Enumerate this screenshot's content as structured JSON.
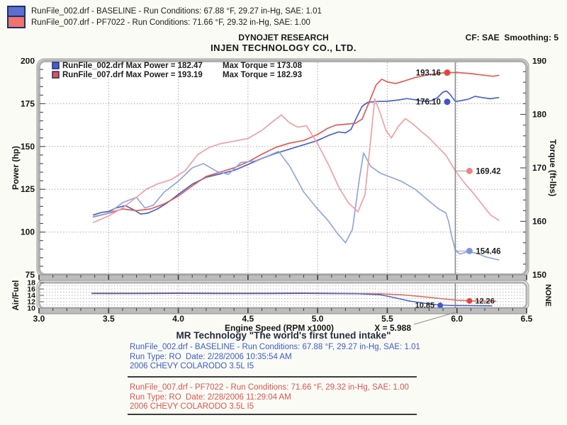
{
  "top_legend": {
    "line1": "RunFile_002.drf - BASELINE  -  Run Conditions: 67.88 °F, 29.27 in-Hg, SAE: 1.01",
    "line2": "RunFile_007.drf - PF7022  -  Run Conditions: 71.66 °F, 29.32 in-Hg, SAE: 1.00"
  },
  "header": {
    "title": "DYNOJET RESEARCH",
    "subtitle": "INJEN TECHNOLOGY CO., LTD.",
    "cf_smoothing": "CF: SAE  Smoothing: 5"
  },
  "colors": {
    "blue_power": "#4a63c8",
    "red_power": "#e05c55",
    "blue_torque": "#93a6dc",
    "pink_torque": "#f0a0a4",
    "blue_dot": "#4156c8",
    "red_dot": "#e8433c",
    "pink_dot": "#ed8287",
    "lightblue_dot": "#7b96e0",
    "grid": "#a8a8a8",
    "cursor": "#7d7d7d",
    "label_text": "#1d1d1d"
  },
  "chart_data": {
    "type": "line",
    "main": {
      "x_axis": {
        "label": "Engine Speed (RPM x1000)",
        "min": 3.0,
        "max": 6.5,
        "tick_labels": [
          "3.0",
          "3.5",
          "4.0",
          "4.5",
          "5.0",
          "5.5",
          "6.0",
          "6.5"
        ]
      },
      "y_left": {
        "label": "Power (hp)",
        "min": 75,
        "max": 200,
        "ticks": [
          200,
          175,
          150,
          125,
          100,
          75
        ]
      },
      "y_right": {
        "label": "Torque (ft-lbs)",
        "min": 150,
        "max": 190,
        "ticks": [
          190,
          180,
          170,
          160,
          150
        ]
      },
      "cursor_x": 5.988,
      "legend_rows": [
        {
          "swatch": "#4a5fc8",
          "power_text": "RunFile_002.drf Max Power = 182.47",
          "torque_text": "Max Torque = 173.08"
        },
        {
          "swatch": "#e2524c",
          "power_text": "RunFile_007.drf Max Power = 193.19",
          "torque_text": "Max Torque = 182.93"
        }
      ],
      "series": [
        {
          "name": "baseline-power-hp",
          "axis": "left",
          "color": "#4a63c8",
          "points": [
            [
              3.39,
              110
            ],
            [
              3.45,
              111.5
            ],
            [
              3.5,
              112
            ],
            [
              3.55,
              114
            ],
            [
              3.62,
              115.5
            ],
            [
              3.68,
              113
            ],
            [
              3.73,
              110.5
            ],
            [
              3.78,
              111
            ],
            [
              3.85,
              113.5
            ],
            [
              3.92,
              117
            ],
            [
              4.0,
              122
            ],
            [
              4.1,
              128
            ],
            [
              4.2,
              132
            ],
            [
              4.3,
              134
            ],
            [
              4.4,
              136
            ],
            [
              4.5,
              139.5
            ],
            [
              4.6,
              143
            ],
            [
              4.7,
              146
            ],
            [
              4.8,
              148.5
            ],
            [
              4.9,
              151
            ],
            [
              5.0,
              153.5
            ],
            [
              5.08,
              156.5
            ],
            [
              5.15,
              158.5
            ],
            [
              5.2,
              158
            ],
            [
              5.24,
              160
            ],
            [
              5.28,
              167
            ],
            [
              5.32,
              173.5
            ],
            [
              5.36,
              175.8
            ],
            [
              5.42,
              176.3
            ],
            [
              5.5,
              176.4
            ],
            [
              5.58,
              177.2
            ],
            [
              5.64,
              178
            ],
            [
              5.7,
              177.3
            ],
            [
              5.76,
              176.4
            ],
            [
              5.82,
              176.8
            ],
            [
              5.86,
              178.5
            ],
            [
              5.9,
              181.8
            ],
            [
              5.925,
              182.4
            ],
            [
              5.95,
              180.5
            ],
            [
              5.988,
              176.3
            ],
            [
              6.02,
              176.6
            ],
            [
              6.08,
              177.6
            ],
            [
              6.13,
              179.3
            ],
            [
              6.18,
              178.6
            ],
            [
              6.24,
              177.9
            ],
            [
              6.3,
              178.6
            ]
          ]
        },
        {
          "name": "pf7022-power-hp",
          "axis": "left",
          "color": "#e05c55",
          "points": [
            [
              3.39,
              109
            ],
            [
              3.5,
              111
            ],
            [
              3.6,
              113.5
            ],
            [
              3.7,
              112.5
            ],
            [
              3.8,
              113.5
            ],
            [
              3.9,
              116.5
            ],
            [
              4.0,
              121
            ],
            [
              4.1,
              127
            ],
            [
              4.2,
              132.5
            ],
            [
              4.3,
              135
            ],
            [
              4.4,
              137.5
            ],
            [
              4.5,
              141
            ],
            [
              4.6,
              145.5
            ],
            [
              4.7,
              149.5
            ],
            [
              4.8,
              152
            ],
            [
              4.9,
              153.5
            ],
            [
              5.0,
              157
            ],
            [
              5.07,
              160.5
            ],
            [
              5.13,
              162.5
            ],
            [
              5.2,
              163
            ],
            [
              5.27,
              163.5
            ],
            [
              5.32,
              166
            ],
            [
              5.37,
              176
            ],
            [
              5.42,
              186
            ],
            [
              5.46,
              189.3
            ],
            [
              5.5,
              187.8
            ],
            [
              5.56,
              186.8
            ],
            [
              5.62,
              188.2
            ],
            [
              5.7,
              190.3
            ],
            [
              5.8,
              192
            ],
            [
              5.9,
              193
            ],
            [
              6.0,
              193.2
            ],
            [
              6.1,
              192.6
            ],
            [
              6.2,
              191.6
            ],
            [
              6.26,
              191
            ],
            [
              6.3,
              191.6
            ]
          ]
        },
        {
          "name": "baseline-torque",
          "axis": "right",
          "color": "#93a6dc",
          "points": [
            [
              3.39,
              160.8
            ],
            [
              3.5,
              161.5
            ],
            [
              3.6,
              163.5
            ],
            [
              3.7,
              164.5
            ],
            [
              3.76,
              162.5
            ],
            [
              3.82,
              163
            ],
            [
              3.9,
              165.5
            ],
            [
              4.0,
              167.5
            ],
            [
              4.1,
              170
            ],
            [
              4.18,
              170.8
            ],
            [
              4.28,
              169.3
            ],
            [
              4.36,
              168.8
            ],
            [
              4.45,
              171
            ],
            [
              4.55,
              171.3
            ],
            [
              4.65,
              172.3
            ],
            [
              4.72,
              173.1
            ],
            [
              4.8,
              170.3
            ],
            [
              4.9,
              165.5
            ],
            [
              5.0,
              162.3
            ],
            [
              5.08,
              160
            ],
            [
              5.14,
              157.8
            ],
            [
              5.2,
              156
            ],
            [
              5.25,
              158.5
            ],
            [
              5.3,
              168
            ],
            [
              5.33,
              172.8
            ],
            [
              5.38,
              170.3
            ],
            [
              5.45,
              169
            ],
            [
              5.52,
              168.3
            ],
            [
              5.6,
              167.5
            ],
            [
              5.7,
              166
            ],
            [
              5.8,
              163.8
            ],
            [
              5.87,
              162.3
            ],
            [
              5.92,
              161.6
            ],
            [
              5.94,
              160
            ],
            [
              5.96,
              157.5
            ],
            [
              5.988,
              154.6
            ],
            [
              6.02,
              153.9
            ],
            [
              6.08,
              154.3
            ],
            [
              6.15,
              154
            ],
            [
              6.2,
              153.4
            ],
            [
              6.3,
              152.8
            ]
          ]
        },
        {
          "name": "pf7022-torque",
          "axis": "right",
          "color": "#f0a0a4",
          "points": [
            [
              3.39,
              159.8
            ],
            [
              3.5,
              161
            ],
            [
              3.6,
              162.5
            ],
            [
              3.7,
              164.5
            ],
            [
              3.77,
              166
            ],
            [
              3.85,
              167
            ],
            [
              3.95,
              167.8
            ],
            [
              4.05,
              169.5
            ],
            [
              4.14,
              172.5
            ],
            [
              4.22,
              173.8
            ],
            [
              4.3,
              174.5
            ],
            [
              4.4,
              175
            ],
            [
              4.5,
              175.5
            ],
            [
              4.6,
              177
            ],
            [
              4.68,
              178.7
            ],
            [
              4.74,
              179.9
            ],
            [
              4.8,
              178.4
            ],
            [
              4.86,
              177.6
            ],
            [
              4.92,
              177.9
            ],
            [
              5.0,
              174.5
            ],
            [
              5.08,
              170.5
            ],
            [
              5.15,
              166.5
            ],
            [
              5.22,
              163.5
            ],
            [
              5.29,
              161.8
            ],
            [
              5.34,
              165
            ],
            [
              5.38,
              175
            ],
            [
              5.41,
              182.9
            ],
            [
              5.45,
              180.2
            ],
            [
              5.49,
              177
            ],
            [
              5.53,
              175.6
            ],
            [
              5.58,
              177.8
            ],
            [
              5.63,
              179.2
            ],
            [
              5.68,
              178.3
            ],
            [
              5.74,
              176.9
            ],
            [
              5.8,
              175.6
            ],
            [
              5.86,
              174
            ],
            [
              5.92,
              172.4
            ],
            [
              5.99,
              169.4
            ],
            [
              6.06,
              167
            ],
            [
              6.12,
              165.2
            ],
            [
              6.18,
              163.2
            ],
            [
              6.24,
              161.2
            ],
            [
              6.3,
              160.2
            ]
          ]
        }
      ],
      "markers": [
        {
          "label": "193.16",
          "rpm": 5.93,
          "value": 193.16,
          "axis": "left",
          "side": "left",
          "dot": "#e8433c"
        },
        {
          "label": "176.10",
          "rpm": 5.93,
          "value": 176.1,
          "axis": "left",
          "side": "left",
          "dot": "#4156c8"
        },
        {
          "label": "169.42",
          "rpm": 6.09,
          "value": 169.42,
          "axis": "right",
          "side": "right",
          "dot": "#ed8287"
        },
        {
          "label": "154.46",
          "rpm": 6.09,
          "value": 154.46,
          "axis": "right",
          "side": "right",
          "dot": "#7b96e0"
        }
      ]
    },
    "af": {
      "y_axis": {
        "label": "Air/Fuel",
        "right_label": "NONE",
        "min": 10,
        "max": 18,
        "ticks": [
          18,
          16,
          14,
          12,
          10
        ]
      },
      "cursor_x": 5.988,
      "cursor_label": "X = 5.988",
      "series": [
        {
          "name": "af-pf7022",
          "color": "#e0635c",
          "points": [
            [
              3.38,
              14.7
            ],
            [
              3.7,
              14.7
            ],
            [
              4.0,
              14.75
            ],
            [
              4.3,
              14.7
            ],
            [
              4.6,
              14.7
            ],
            [
              4.9,
              14.75
            ],
            [
              5.2,
              14.6
            ],
            [
              5.45,
              14.5
            ],
            [
              5.6,
              14.2
            ],
            [
              5.75,
              13.6
            ],
            [
              5.9,
              12.9
            ],
            [
              6.0,
              12.5
            ],
            [
              6.1,
              12.26
            ],
            [
              6.2,
              12.2
            ],
            [
              6.28,
              12.2
            ]
          ]
        },
        {
          "name": "af-baseline",
          "color": "#4a63c8",
          "points": [
            [
              3.38,
              14.55
            ],
            [
              3.7,
              14.55
            ],
            [
              4.0,
              14.6
            ],
            [
              4.3,
              14.55
            ],
            [
              4.6,
              14.55
            ],
            [
              4.9,
              14.6
            ],
            [
              5.1,
              14.55
            ],
            [
              5.3,
              14.5
            ],
            [
              5.45,
              14.2
            ],
            [
              5.55,
              13.3
            ],
            [
              5.65,
              12.3
            ],
            [
              5.75,
              11.6
            ],
            [
              5.85,
              11.1
            ],
            [
              5.95,
              10.85
            ],
            [
              6.05,
              10.8
            ],
            [
              6.15,
              10.75
            ],
            [
              6.25,
              10.7
            ]
          ]
        }
      ],
      "markers": [
        {
          "label": "10.85",
          "rpm": 5.88,
          "value": 10.85,
          "side": "left",
          "dot": "#4156c8"
        },
        {
          "label": "12.26",
          "rpm": 6.09,
          "value": 12.26,
          "side": "right",
          "dot": "#e8433c"
        }
      ]
    }
  },
  "footer": {
    "mr_title": "MR Technology \"The world's first tuned intake\"",
    "blue_block": {
      "line1": "RunFile_002.drf - BASELINE  -  Run Conditions: 67.88 °F, 29.27 in-Hg, SAE: 1.01",
      "line2": "Run Type: RO  Date: 2/28/2006 10:35:54 AM",
      "line3": "2006 CHEVY COLARODO 3.5L I5"
    },
    "red_block": {
      "line1": "RunFile_007.drf - PF7022  -  Run Conditions: 71.66 °F, 29.32 in-Hg, SAE: 1.00",
      "line2": "Run Type: RO  Date: 2/28/2006 11:29:04 AM",
      "line3": "2006 CHEVY COLARODO 3.5L I5"
    }
  }
}
